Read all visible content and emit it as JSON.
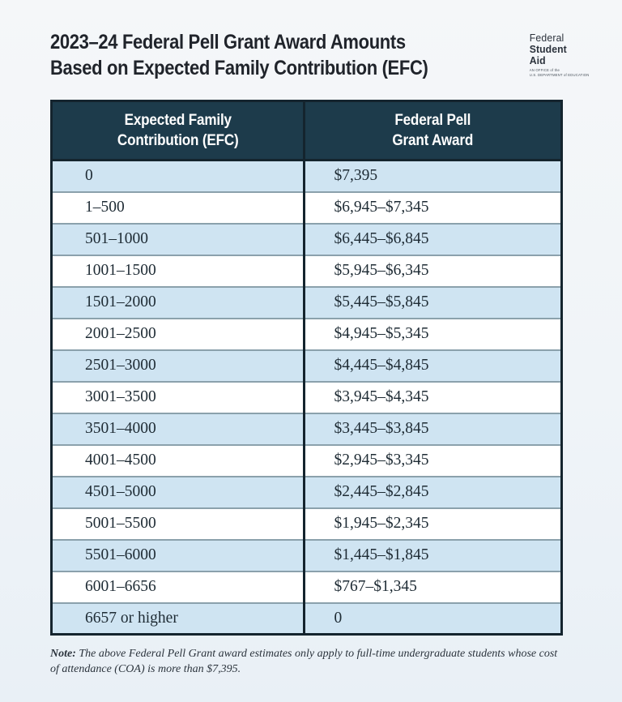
{
  "page": {
    "title_line1": "2023–24 Federal Pell Grant Award Amounts",
    "title_line2": "Based on Expected Family Contribution (EFC)"
  },
  "logo": {
    "line1": "Federal",
    "line2": "Student",
    "line3": "Aid",
    "tagline_line1": "AN OFFICE of the",
    "tagline_line2": "U.S. DEPARTMENT of EDUCATION"
  },
  "colors": {
    "header_bg": "#1d3b4b",
    "table_border": "#14242e",
    "row_alt_bg": "#cfe4f2",
    "row_bg": "#ffffff",
    "row_separator": "#8ba1ac",
    "title_text": "#20242b",
    "cell_text": "#1e2b34"
  },
  "table": {
    "col1_header_line1": "Expected Family",
    "col1_header_line2": "Contribution (EFC)",
    "col2_header_line1": "Federal Pell",
    "col2_header_line2": "Grant Award",
    "rows": [
      {
        "efc": "0",
        "award": "$7,395"
      },
      {
        "efc": "1–500",
        "award": "$6,945–$7,345"
      },
      {
        "efc": "501–1000",
        "award": "$6,445–$6,845"
      },
      {
        "efc": "1001–1500",
        "award": "$5,945–$6,345"
      },
      {
        "efc": "1501–2000",
        "award": "$5,445–$5,845"
      },
      {
        "efc": "2001–2500",
        "award": "$4,945–$5,345"
      },
      {
        "efc": "2501–3000",
        "award": "$4,445–$4,845"
      },
      {
        "efc": "3001–3500",
        "award": "$3,945–$4,345"
      },
      {
        "efc": "3501–4000",
        "award": "$3,445–$3,845"
      },
      {
        "efc": "4001–4500",
        "award": "$2,945–$3,345"
      },
      {
        "efc": "4501–5000",
        "award": "$2,445–$2,845"
      },
      {
        "efc": "5001–5500",
        "award": "$1,945–$2,345"
      },
      {
        "efc": "5501–6000",
        "award": "$1,445–$1,845"
      },
      {
        "efc": "6001–6656",
        "award": "$767–$1,345"
      },
      {
        "efc": "6657 or higher",
        "award": "0"
      }
    ]
  },
  "note": {
    "label": "Note:",
    "text": " The above Federal Pell Grant award estimates only apply to full-time undergraduate students whose cost of attendance (COA) is more than $7,395."
  },
  "chart_data": {
    "type": "table",
    "title": "2023–24 Federal Pell Grant Award Amounts Based on Expected Family Contribution (EFC)",
    "columns": [
      "Expected Family Contribution (EFC)",
      "Federal Pell Grant Award"
    ],
    "rows": [
      [
        "0",
        "$7,395"
      ],
      [
        "1–500",
        "$6,945–$7,345"
      ],
      [
        "501–1000",
        "$6,445–$6,845"
      ],
      [
        "1001–1500",
        "$5,945–$6,345"
      ],
      [
        "1501–2000",
        "$5,445–$5,845"
      ],
      [
        "2001–2500",
        "$4,945–$5,345"
      ],
      [
        "2501–3000",
        "$4,445–$4,845"
      ],
      [
        "3001–3500",
        "$3,945–$4,345"
      ],
      [
        "3501–4000",
        "$3,445–$3,845"
      ],
      [
        "4001–4500",
        "$2,945–$3,345"
      ],
      [
        "4501–5000",
        "$2,445–$2,845"
      ],
      [
        "5001–5500",
        "$1,945–$2,345"
      ],
      [
        "5501–6000",
        "$1,445–$1,845"
      ],
      [
        "6001–6656",
        "$767–$1,345"
      ],
      [
        "6657 or higher",
        "0"
      ]
    ]
  }
}
